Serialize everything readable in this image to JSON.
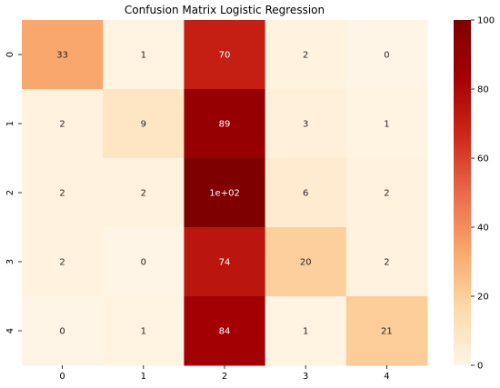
{
  "chart_data": {
    "type": "heatmap",
    "title": "Confusion Matrix Logistic Regression",
    "xlabel": "",
    "ylabel": "",
    "x_categories": [
      "0",
      "1",
      "2",
      "3",
      "4"
    ],
    "y_categories": [
      "0",
      "1",
      "2",
      "3",
      "4"
    ],
    "values": [
      [
        33,
        1,
        70,
        2,
        0
      ],
      [
        2,
        9,
        89,
        3,
        1
      ],
      [
        2,
        2,
        100,
        6,
        2
      ],
      [
        2,
        0,
        74,
        20,
        2
      ],
      [
        0,
        1,
        84,
        1,
        21
      ]
    ],
    "annotations": [
      [
        "33",
        "1",
        "70",
        "2",
        "0"
      ],
      [
        "2",
        "9",
        "89",
        "3",
        "1"
      ],
      [
        "2",
        "2",
        "1e+02",
        "6",
        "2"
      ],
      [
        "2",
        "0",
        "74",
        "20",
        "2"
      ],
      [
        "0",
        "1",
        "84",
        "1",
        "21"
      ]
    ],
    "colormap": "OrRd-like",
    "colors": [
      "#fff5e6",
      "#fdd9a9",
      "#f9a66b",
      "#ea6a4a",
      "#cd2717",
      "#a30003",
      "#7f0000"
    ],
    "colorbar": {
      "range": [
        0,
        100
      ],
      "ticks": [
        0,
        20,
        40,
        60,
        80,
        100
      ],
      "tick_labels": [
        "0",
        "20",
        "40",
        "60",
        "80",
        "100"
      ]
    }
  }
}
